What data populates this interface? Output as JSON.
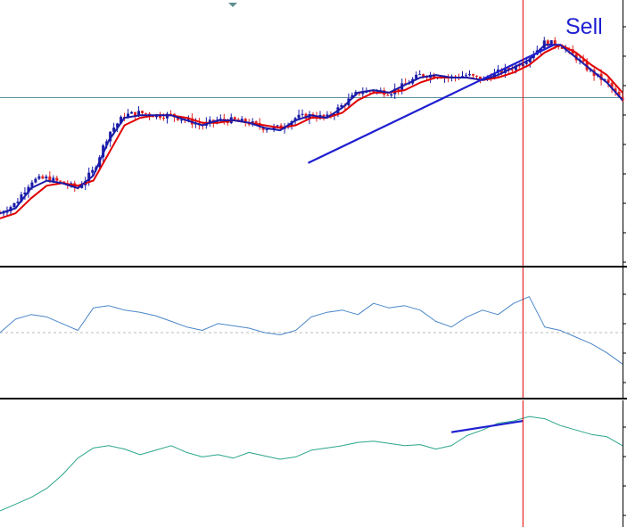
{
  "annotations": {
    "signal_label": "Sell"
  },
  "colors": {
    "bull_candle": "#1a1aa8",
    "bear_candle": "#e02020",
    "slow_ma": "#e00000",
    "fast_ma": "#1a1aa8",
    "trendline": "#1f1fd0",
    "signal_line": "#e00000",
    "osc_line": "#4a86c8",
    "bottom_line": "#2aa58a",
    "level_line": "#5f8fa0"
  },
  "chart_data": [
    {
      "type": "candlestick",
      "title": "",
      "xlabel": "",
      "ylabel": "",
      "grid": false,
      "ylim": [
        0,
        100
      ],
      "x": [
        0,
        5,
        10,
        15,
        20,
        25,
        30,
        35,
        40,
        45,
        50,
        55,
        60,
        65,
        70,
        75,
        80,
        85,
        90,
        95,
        100,
        105,
        110,
        115,
        120,
        125,
        130,
        135,
        140,
        145,
        150,
        155,
        160,
        165,
        170,
        175,
        180,
        185,
        190,
        195,
        200
      ],
      "close": [
        18,
        22,
        31,
        32,
        30,
        28,
        35,
        50,
        57,
        58,
        57,
        57,
        55,
        53,
        55,
        55,
        54,
        52,
        52,
        56,
        57,
        56,
        61,
        66,
        67,
        66,
        69,
        73,
        73,
        72,
        73,
        71,
        74,
        76,
        80,
        86,
        85,
        80,
        74,
        70,
        62
      ],
      "fast_ma": [
        18,
        20,
        28,
        31,
        30,
        28,
        33,
        47,
        56,
        57,
        57,
        57,
        55,
        53,
        55,
        55,
        54,
        52,
        51,
        55,
        57,
        56,
        60,
        66,
        67,
        66,
        69,
        72,
        73,
        72,
        72,
        71,
        73,
        76,
        79,
        85,
        85,
        80,
        75,
        70,
        63
      ],
      "slow_ma": [
        16,
        18,
        24,
        29,
        30,
        29,
        31,
        42,
        53,
        56,
        57,
        57,
        56,
        54,
        54,
        55,
        54,
        53,
        52,
        53,
        56,
        56,
        58,
        63,
        66,
        66,
        67,
        70,
        72,
        72,
        72,
        71,
        72,
        74,
        77,
        82,
        85,
        82,
        77,
        73,
        66
      ],
      "trendline": {
        "x": [
          99,
          178
        ],
        "y": [
          38,
          85
        ]
      },
      "signal_marker_x": 168,
      "level_line_y": 64
    },
    {
      "type": "line",
      "title": "",
      "xlabel": "",
      "ylabel": "",
      "grid": false,
      "ylim": [
        0,
        100
      ],
      "x": [
        0,
        5,
        10,
        15,
        20,
        25,
        30,
        35,
        40,
        45,
        50,
        55,
        60,
        65,
        70,
        75,
        80,
        85,
        90,
        95,
        100,
        105,
        110,
        115,
        120,
        125,
        130,
        135,
        140,
        145,
        150,
        155,
        160,
        165,
        170,
        175,
        180,
        185,
        190,
        195,
        200
      ],
      "values": [
        50,
        62,
        66,
        64,
        58,
        52,
        72,
        74,
        70,
        68,
        65,
        60,
        55,
        52,
        58,
        56,
        54,
        50,
        48,
        52,
        64,
        68,
        70,
        66,
        76,
        72,
        74,
        70,
        60,
        55,
        64,
        70,
        66,
        76,
        82,
        55,
        52,
        46,
        40,
        32,
        22
      ],
      "midline_y": 50,
      "signal_marker_x": 168
    },
    {
      "type": "line",
      "title": "",
      "xlabel": "",
      "ylabel": "",
      "grid": false,
      "ylim": [
        0,
        100
      ],
      "x": [
        0,
        5,
        10,
        15,
        20,
        25,
        30,
        35,
        40,
        45,
        50,
        55,
        60,
        65,
        70,
        75,
        80,
        85,
        90,
        95,
        100,
        105,
        110,
        115,
        120,
        125,
        130,
        135,
        140,
        145,
        150,
        155,
        160,
        165,
        170,
        175,
        180,
        185,
        190,
        195,
        200
      ],
      "values": [
        8,
        14,
        20,
        28,
        40,
        55,
        64,
        66,
        63,
        58,
        62,
        66,
        60,
        56,
        58,
        55,
        60,
        57,
        54,
        56,
        62,
        64,
        66,
        69,
        70,
        68,
        66,
        67,
        63,
        66,
        75,
        80,
        86,
        88,
        92,
        90,
        84,
        80,
        76,
        74,
        66
      ],
      "trendline": {
        "x": [
          145,
          168
        ],
        "y": [
          78,
          88
        ]
      },
      "signal_marker_x": 168
    }
  ]
}
